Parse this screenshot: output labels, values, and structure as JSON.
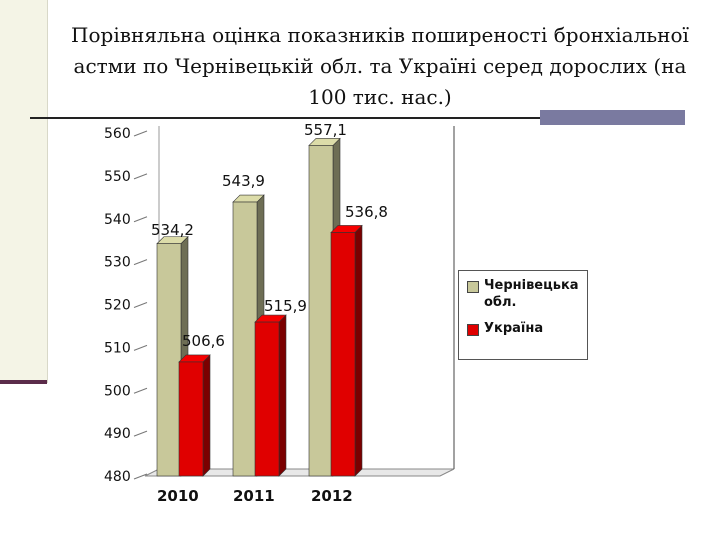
{
  "title": "Порівняльна оцінка показників поширеності бронхіальної астми по Чернівецькій обл. та Україні серед дорослих (на 100 тис. нас.)",
  "colors": {
    "series1": "#c8c89a",
    "series2": "#e00000",
    "highlight_label": "#d00000"
  },
  "chart_data": {
    "type": "bar",
    "title": "Порівняльна оцінка показників поширеності бронхіальної астми по Чернівецькій обл. та Україні серед дорослих (на 100 тис. нас.)",
    "categories": [
      "2010",
      "2011",
      "2012"
    ],
    "series": [
      {
        "name": "Чернівецька обл.",
        "values": [
          534.2,
          543.9,
          557.1
        ],
        "labels": [
          "534,2",
          "543,9",
          "557,1"
        ]
      },
      {
        "name": "Україна",
        "values": [
          506.6,
          515.9,
          536.8
        ],
        "labels": [
          "506,6",
          "515,9",
          "536,8"
        ]
      }
    ],
    "y_ticks": [
      "480",
      "490",
      "500",
      "510",
      "520",
      "530",
      "540",
      "550",
      "560"
    ],
    "ylim": [
      480,
      560
    ],
    "grid": false,
    "legend_position": "right",
    "xlabel": "",
    "ylabel": ""
  }
}
